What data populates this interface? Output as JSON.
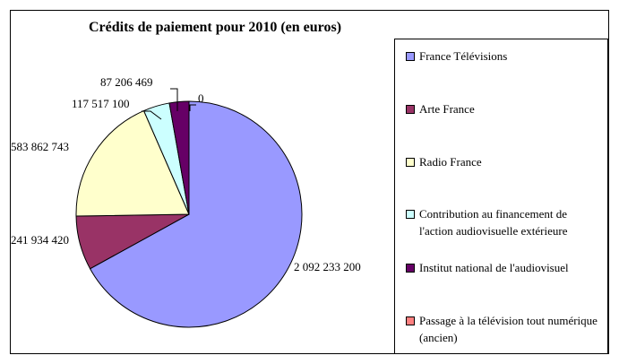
{
  "chart_data": {
    "type": "pie",
    "title": "Crédits de paiement pour 2010 (en euros)",
    "categories": [
      "France Télévisions",
      "Arte France",
      "Radio France",
      "Contribution au financement de l'action audiovisuelle extérieure",
      "Institut national de l'audiovisuel",
      "Passage à la télévision tout numérique (ancien)"
    ],
    "values": [
      2092233200,
      241934420,
      583862743,
      117517100,
      87206469,
      0
    ],
    "data_labels": [
      "2 092 233 200",
      "241 934 420",
      "583 862 743",
      "117 517 100",
      "87 206 469",
      "0"
    ],
    "colors": [
      "#9999ff",
      "#993366",
      "#ffffcc",
      "#ccffff",
      "#660066",
      "#ff8080"
    ],
    "legend_position": "right"
  }
}
